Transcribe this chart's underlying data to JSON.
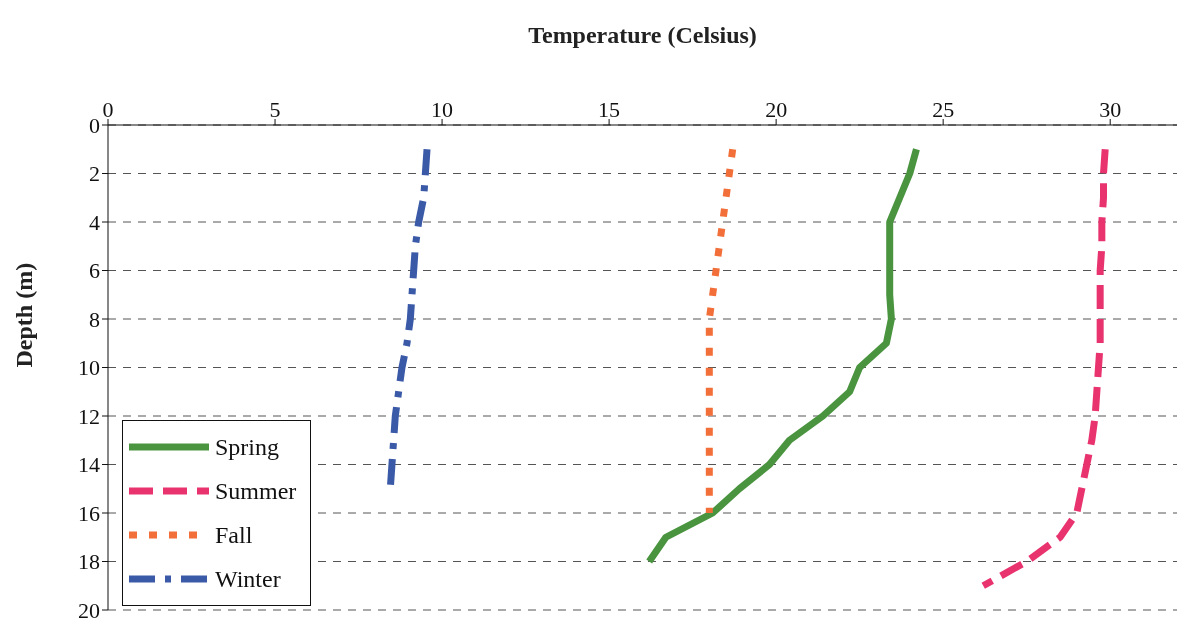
{
  "chart_data": {
    "type": "line",
    "xlabel": "Temperature (Celsius)",
    "ylabel": "Depth (m)",
    "xlim": [
      0,
      32
    ],
    "xticks": [
      0,
      5,
      10,
      15,
      20,
      25,
      30
    ],
    "ylim": [
      20,
      0
    ],
    "yticks": [
      0,
      2,
      4,
      6,
      8,
      10,
      12,
      14,
      16,
      18,
      20
    ],
    "grid": "y",
    "legend": "bottom left",
    "marker": "none",
    "series": [
      {
        "name": "Spring",
        "color": "#4a9440",
        "line_style": "solid",
        "x": [
          24.2,
          24.0,
          23.7,
          23.4,
          23.4,
          23.4,
          23.4,
          23.45,
          23.3,
          22.5,
          22.2,
          21.4,
          20.4,
          19.8,
          18.9,
          18.1,
          16.7,
          16.2
        ],
        "values": [
          1,
          2,
          3,
          4,
          5,
          6,
          7,
          8,
          9,
          10,
          11,
          12,
          13,
          14,
          15,
          16,
          17,
          18
        ]
      },
      {
        "name": "Summer",
        "color": "#e8336f",
        "line_style": "dashed",
        "x": [
          29.85,
          29.8,
          29.8,
          29.75,
          29.75,
          29.7,
          29.7,
          29.7,
          29.7,
          29.65,
          29.6,
          29.55,
          29.45,
          29.3,
          29.15,
          29.0,
          28.5,
          27.5,
          26.2
        ],
        "values": [
          1,
          2,
          3,
          4,
          5,
          6,
          7,
          8,
          9,
          10,
          11,
          12,
          13,
          14,
          15,
          16,
          17,
          18,
          19
        ]
      },
      {
        "name": "Fall",
        "color": "#f26f3a",
        "line_style": "dotted",
        "x": [
          18.7,
          18.6,
          18.5,
          18.4,
          18.3,
          18.2,
          18.1,
          18.0,
          18.0,
          18.0,
          18.0,
          18.0,
          18.0,
          18.0,
          18.0,
          18.0
        ],
        "values": [
          1,
          2,
          3,
          4,
          5,
          6,
          7,
          8,
          9,
          10,
          11,
          12,
          13,
          14,
          15,
          16
        ]
      },
      {
        "name": "Winter",
        "color": "#3a5aa8",
        "line_style": "dashdot",
        "x": [
          9.55,
          9.5,
          9.45,
          9.3,
          9.2,
          9.15,
          9.1,
          9.05,
          8.95,
          8.8,
          8.7,
          8.6,
          8.55,
          8.5,
          8.45
        ],
        "values": [
          1,
          2,
          3,
          4,
          5,
          6,
          7,
          8,
          9,
          10,
          11,
          12,
          13,
          14,
          15
        ]
      }
    ]
  }
}
